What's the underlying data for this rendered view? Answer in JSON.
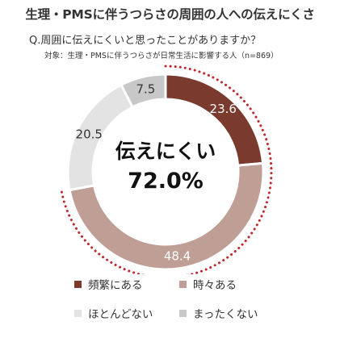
{
  "title": "生理・PMSに伴うつらさの周囲の人への伝えにくさ",
  "question": "Q.周囲に伝えにくいと思ったことがありますか？",
  "target": "対象：生理・PMSに伴うつらさが日常生活に影響する人（n=869）",
  "chart_data": {
    "type": "pie",
    "style": "donut",
    "categories": [
      "頻繁にある",
      "時々ある",
      "ほとんどない",
      "まったくない"
    ],
    "values": [
      23.6,
      48.4,
      20.5,
      7.5
    ],
    "value_labels": [
      "23.6",
      "48.4",
      "20.5",
      "7.5"
    ],
    "colors": [
      "#7b3a2e",
      "#bf9e96",
      "#e3e3e3",
      "#c8c8c8"
    ],
    "label_colors": [
      "#ffffff",
      "#ffffff",
      "#333333",
      "#333333"
    ],
    "center_label": "伝えにくい",
    "center_value": "72.0%",
    "highlight": {
      "series_indices": [
        0,
        1
      ],
      "style": "dotted-arc",
      "color": "#c0262d"
    },
    "legend_placement": "bottom"
  },
  "legend": [
    {
      "label": "頻繁にある",
      "color": "#7b3a2e"
    },
    {
      "label": "時々ある",
      "color": "#bf9e96"
    },
    {
      "label": "ほとんどない",
      "color": "#e3e3e3"
    },
    {
      "label": "まったくない",
      "color": "#c8c8c8"
    }
  ]
}
